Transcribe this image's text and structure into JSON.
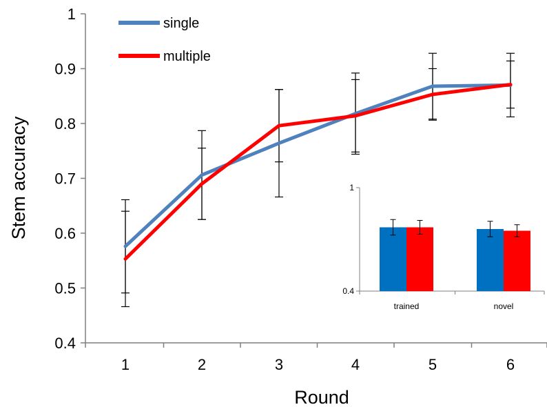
{
  "chart_data": [
    {
      "type": "line",
      "title": "",
      "xlabel": "Round",
      "ylabel": "Stem accuracy",
      "x": [
        1,
        2,
        3,
        4,
        5,
        6
      ],
      "x_tick_labels": [
        "1",
        "2",
        "3",
        "4",
        "5",
        "6"
      ],
      "ylim": [
        0.4,
        1.0
      ],
      "y_ticks": [
        0.4,
        0.5,
        0.6,
        0.7,
        0.8,
        0.9,
        1.0
      ],
      "y_tick_labels": [
        "0.4",
        "0.5",
        "0.6",
        "0.7",
        "0.8",
        "0.9",
        "1"
      ],
      "grid": false,
      "legend_position": "top-left",
      "series": [
        {
          "name": "single",
          "color": "#4f81bd",
          "values": [
            0.576,
            0.706,
            0.764,
            0.818,
            0.868,
            0.87
          ],
          "error": [
            0.085,
            0.081,
            0.098,
            0.074,
            0.06,
            0.058
          ]
        },
        {
          "name": "multiple",
          "color": "#ff0000",
          "values": [
            0.553,
            0.69,
            0.796,
            0.814,
            0.853,
            0.871
          ],
          "error": [
            0.087,
            0.065,
            0.066,
            0.066,
            0.047,
            0.043
          ]
        }
      ]
    },
    {
      "type": "bar",
      "title": "",
      "xlabel": "",
      "ylabel": "",
      "categories": [
        "trained",
        "novel"
      ],
      "ylim": [
        0.4,
        1.0
      ],
      "y_ticks": [
        0.4,
        1.0
      ],
      "y_tick_labels": [
        "0.4",
        "1"
      ],
      "grid": false,
      "legend_position": "none",
      "series": [
        {
          "color": "#0070c0",
          "values": [
            0.77,
            0.76
          ],
          "error": [
            0.045,
            0.045
          ]
        },
        {
          "color": "#ff0000",
          "values": [
            0.77,
            0.75
          ],
          "error": [
            0.04,
            0.035
          ]
        }
      ]
    }
  ]
}
